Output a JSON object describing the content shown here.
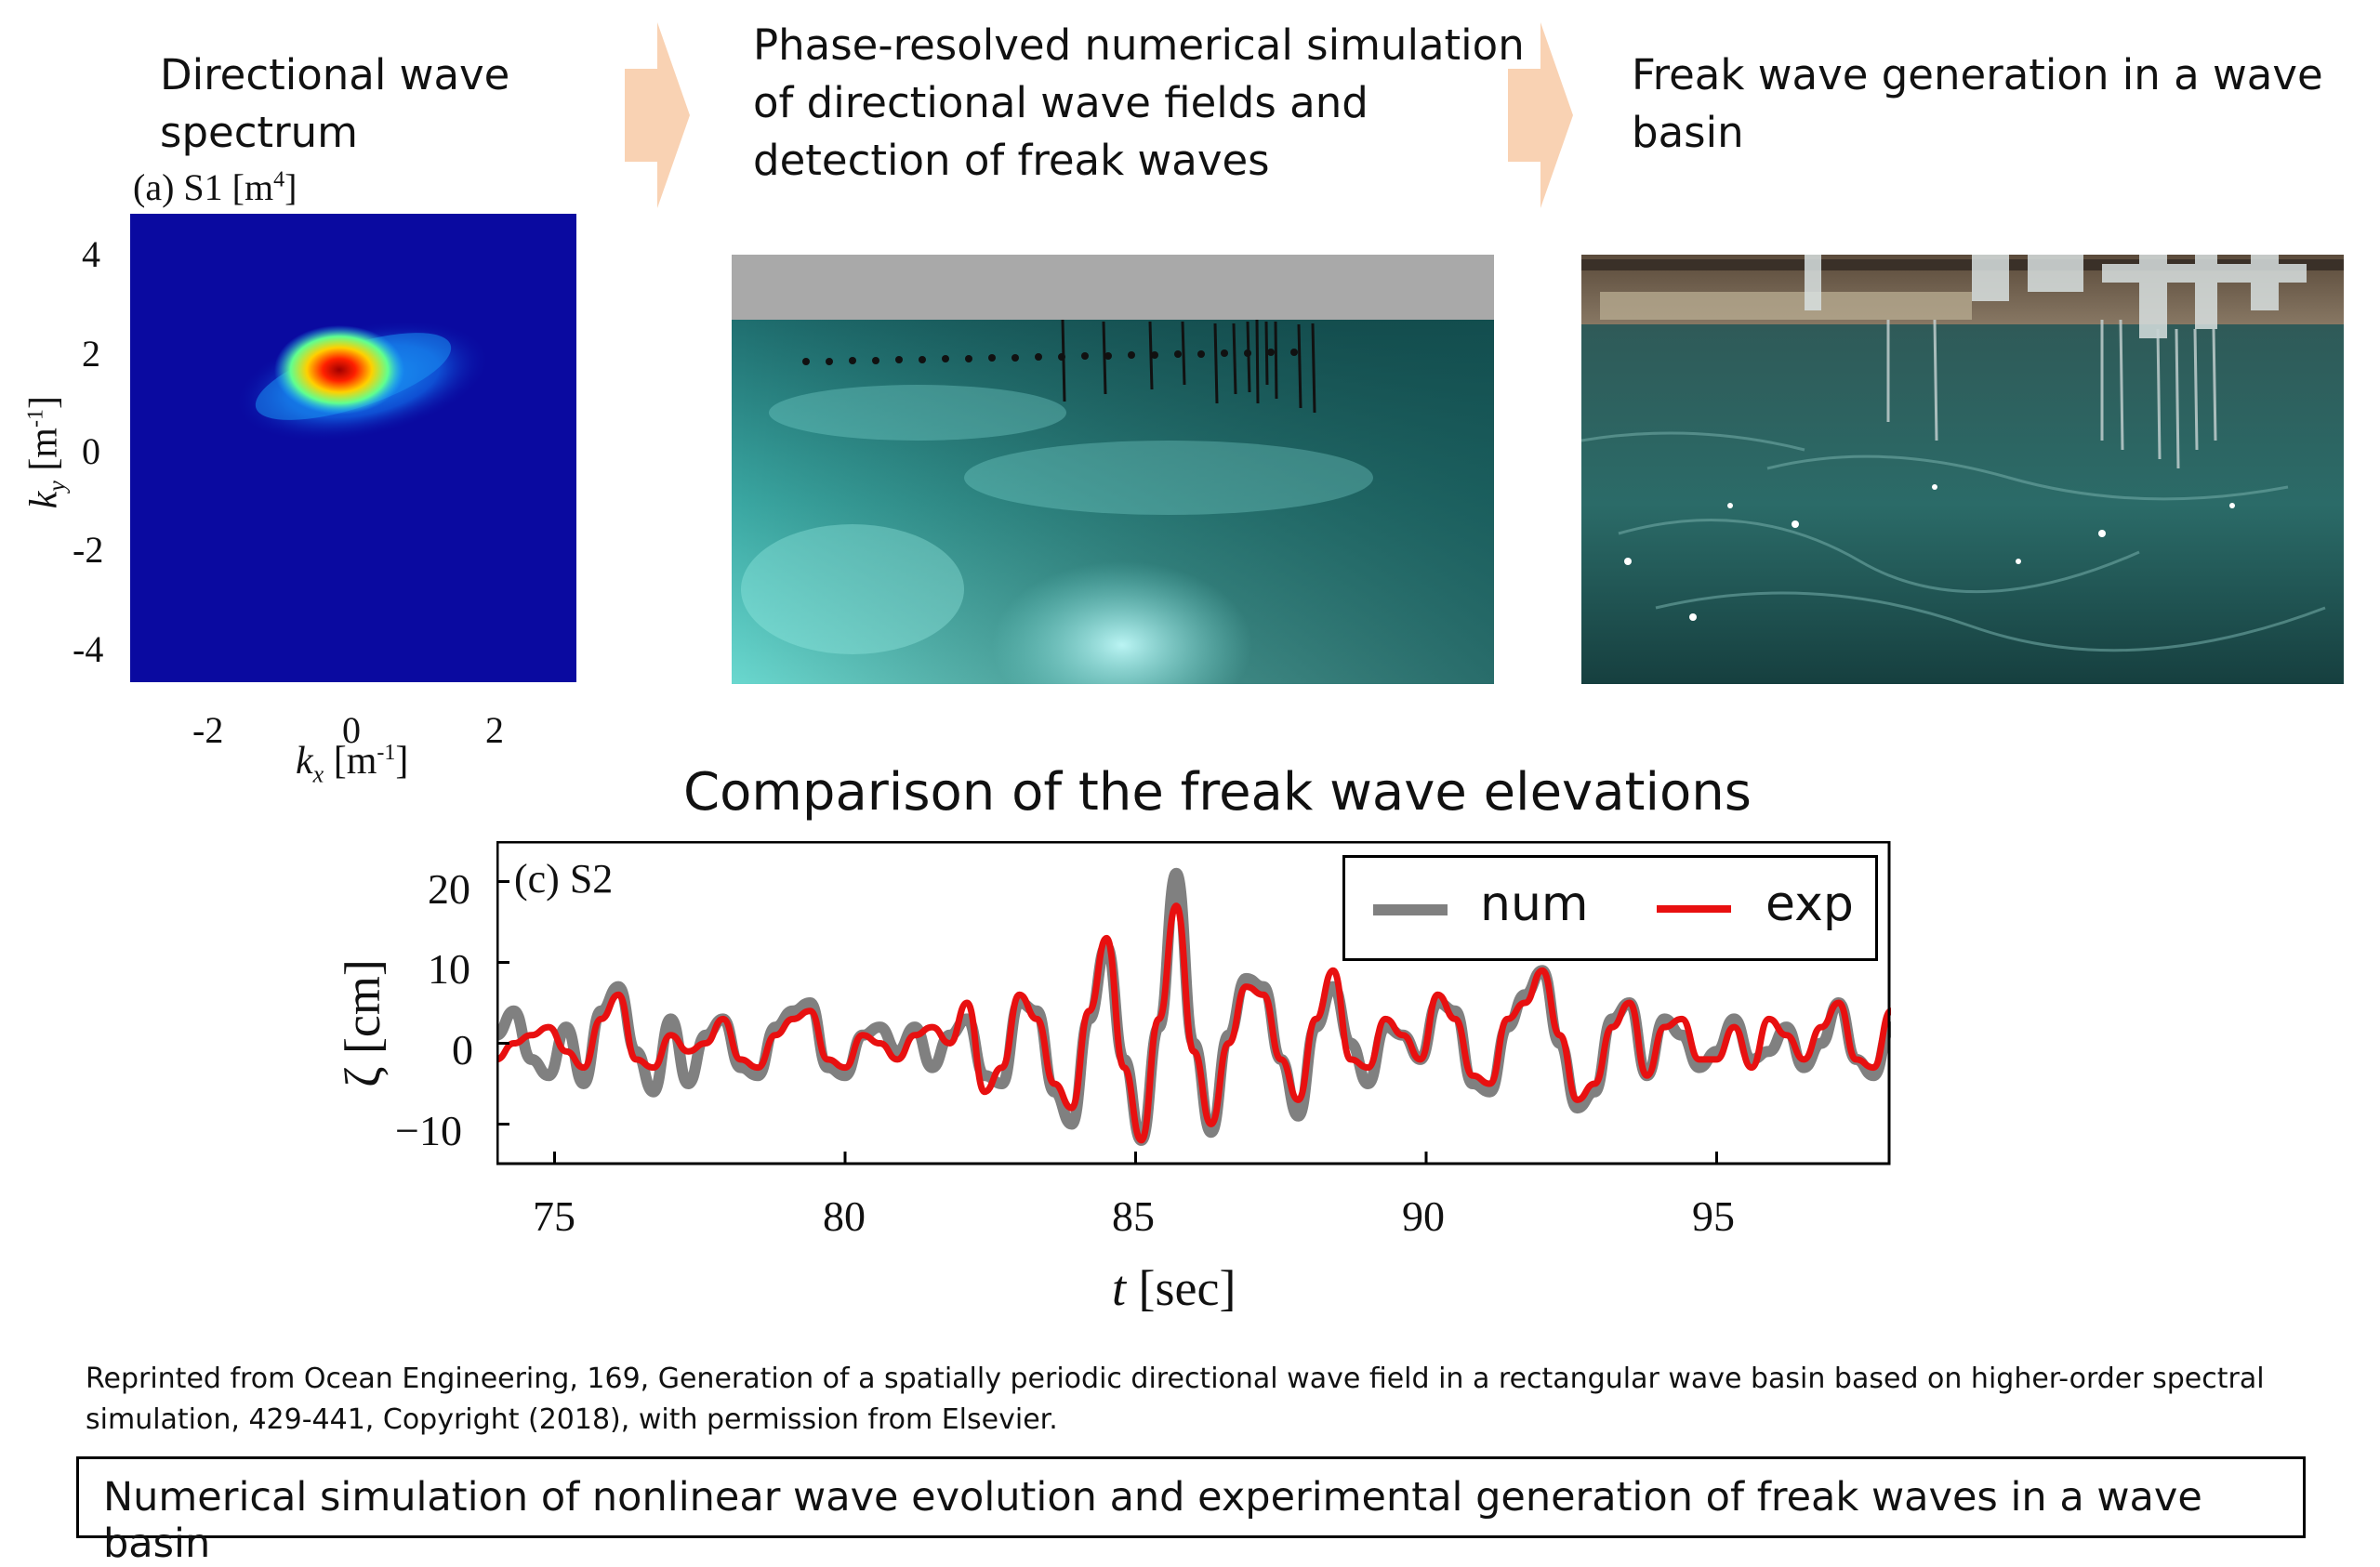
{
  "steps": [
    {
      "title_line1": "Directional wave",
      "title_line2": "spectrum"
    },
    {
      "title_line1": "Phase-resolved numerical simulation",
      "title_line2": "of directional wave fields and",
      "title_line3": "detection of freak waves"
    },
    {
      "title_line1": "Freak wave generation in a wave",
      "title_line2": "basin"
    }
  ],
  "colors": {
    "arrow": "#f9d2b3",
    "spectrum_bg": "#0a0aa0",
    "sim_water": "#2a8f8a",
    "sim_sky": "#a9a9a9",
    "num": "#808080",
    "exp": "#e81010"
  },
  "spectrum": {
    "panel_label": "(a) S1 [m",
    "panel_label_sup": "4",
    "panel_label_end": "]",
    "xlabel_var": "k",
    "xlabel_sub": "x",
    "xlabel_unit": " [m",
    "xlabel_sup": "-1",
    "xlabel_end": "]",
    "ylabel_var": "k",
    "ylabel_sub": "y",
    "ylabel_unit": " [m",
    "ylabel_sup": "-1",
    "ylabel_end": "]",
    "xticks": [
      "-2",
      "0",
      "2"
    ],
    "yticks": [
      "4",
      "2",
      "0",
      "-2",
      "-4"
    ]
  },
  "chart_data": {
    "type": "line",
    "title": "Comparison of the freak wave elevations",
    "panel_label": "(c) S2",
    "xlabel_var": "t",
    "xlabel_unit": "[sec]",
    "ylabel": "ζ [cm]",
    "xlim": [
      74,
      98
    ],
    "ylim": [
      -15,
      25
    ],
    "xticks": [
      "75",
      "80",
      "85",
      "90",
      "95"
    ],
    "yticks": [
      "20",
      "10",
      "0",
      "−10"
    ],
    "legend_position": "top-right",
    "series": [
      {
        "name": "num",
        "x": [
          74.0,
          74.3,
          74.6,
          74.9,
          75.2,
          75.5,
          75.8,
          76.1,
          76.4,
          76.7,
          77.0,
          77.3,
          77.6,
          77.9,
          78.2,
          78.5,
          78.8,
          79.1,
          79.4,
          79.7,
          80.0,
          80.3,
          80.6,
          80.9,
          81.2,
          81.5,
          81.8,
          82.1,
          82.4,
          82.7,
          83.0,
          83.3,
          83.6,
          83.9,
          84.2,
          84.5,
          84.8,
          85.1,
          85.4,
          85.7,
          86.0,
          86.3,
          86.6,
          86.9,
          87.2,
          87.5,
          87.8,
          88.1,
          88.4,
          88.7,
          89.0,
          89.3,
          89.6,
          89.9,
          90.2,
          90.5,
          90.8,
          91.1,
          91.4,
          91.7,
          92.0,
          92.3,
          92.6,
          92.9,
          93.2,
          93.5,
          93.8,
          94.1,
          94.4,
          94.7,
          95.0,
          95.3,
          95.6,
          95.9,
          96.2,
          96.5,
          96.8,
          97.1,
          97.4,
          97.7,
          98.0
        ],
        "y": [
          1,
          4,
          -2,
          -4,
          2,
          -5,
          4,
          7,
          -1,
          -6,
          3,
          -5,
          1,
          3,
          -3,
          -4,
          2,
          4,
          5,
          -3,
          -4,
          1,
          2,
          -1,
          2,
          -3,
          1,
          3,
          -4,
          -5,
          5,
          4,
          -6,
          -10,
          3,
          12,
          -2,
          -12,
          2,
          21,
          0,
          -11,
          1,
          8,
          7,
          -2,
          -9,
          2,
          7,
          0,
          -5,
          2,
          1,
          -2,
          5,
          4,
          -5,
          -6,
          2,
          6,
          9,
          0,
          -8,
          -6,
          3,
          5,
          -4,
          3,
          1,
          -3,
          -1,
          3,
          -2,
          -1,
          2,
          -3,
          0,
          5,
          -2,
          -4,
          2
        ]
      },
      {
        "name": "exp",
        "x": [
          74.0,
          74.3,
          74.6,
          74.9,
          75.2,
          75.5,
          75.8,
          76.1,
          76.4,
          76.7,
          77.0,
          77.3,
          77.6,
          77.9,
          78.2,
          78.5,
          78.8,
          79.1,
          79.4,
          79.7,
          80.0,
          80.3,
          80.6,
          80.9,
          81.2,
          81.5,
          81.8,
          82.1,
          82.4,
          82.7,
          83.0,
          83.3,
          83.6,
          83.9,
          84.2,
          84.5,
          84.8,
          85.1,
          85.4,
          85.7,
          86.0,
          86.3,
          86.6,
          86.9,
          87.2,
          87.5,
          87.8,
          88.1,
          88.4,
          88.7,
          89.0,
          89.3,
          89.6,
          89.9,
          90.2,
          90.5,
          90.8,
          91.1,
          91.4,
          91.7,
          92.0,
          92.3,
          92.6,
          92.9,
          93.2,
          93.5,
          93.8,
          94.1,
          94.4,
          94.7,
          95.0,
          95.3,
          95.6,
          95.9,
          96.2,
          96.5,
          96.8,
          97.1,
          97.4,
          97.7,
          98.0
        ],
        "y": [
          -2,
          0,
          1,
          2,
          -1,
          -3,
          3,
          6,
          -2,
          -3,
          1,
          -1,
          0,
          3,
          -2,
          -3,
          1,
          3,
          4,
          -2,
          -3,
          1,
          0,
          -2,
          1,
          2,
          0,
          5,
          -6,
          -3,
          6,
          3,
          -5,
          -8,
          4,
          13,
          -3,
          -12,
          3,
          17,
          -1,
          -10,
          0,
          7,
          6,
          -2,
          -7,
          3,
          9,
          -2,
          -3,
          3,
          1,
          -2,
          6,
          3,
          -4,
          -5,
          3,
          5,
          9,
          1,
          -7,
          -5,
          2,
          5,
          -4,
          2,
          3,
          -2,
          -2,
          2,
          -3,
          3,
          1,
          -2,
          2,
          5,
          -2,
          -3,
          4
        ]
      }
    ]
  },
  "credit_line1": "Reprinted from Ocean Engineering, 169, Generation of a spatially periodic directional wave field in a rectangular wave basin based on higher-order spectral",
  "credit_line2": "simulation, 429-441, Copyright (2018), with permission from Elsevier.",
  "caption": "Numerical simulation of nonlinear wave evolution and experimental generation of freak waves in a wave basin"
}
